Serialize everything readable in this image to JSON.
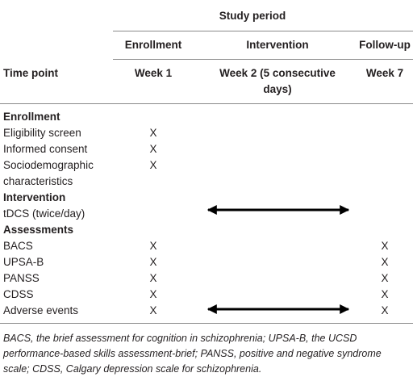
{
  "header": {
    "group_title": "Study period",
    "columns": [
      "Enrollment",
      "Intervention",
      "Follow-up"
    ],
    "row_header": "Time point",
    "time_points": [
      "Week 1",
      "Week 2 (5 consecutive days)",
      "Week 7"
    ]
  },
  "sections": [
    {
      "title": "Enrollment",
      "rows": [
        {
          "label": "Eligibility screen",
          "cells": [
            "X",
            null,
            null
          ]
        },
        {
          "label": "Informed consent",
          "cells": [
            "X",
            null,
            null
          ]
        },
        {
          "label": "Sociodemographic characteristics",
          "cells": [
            "X",
            null,
            null
          ]
        }
      ]
    },
    {
      "title": "Intervention",
      "rows": [
        {
          "label": "tDCS (twice/day)",
          "cells": [
            null,
            null,
            null
          ]
        }
      ]
    },
    {
      "title": "Assessments",
      "rows": [
        {
          "label": "BACS",
          "cells": [
            "X",
            null,
            "X"
          ]
        },
        {
          "label": "UPSA-B",
          "cells": [
            "X",
            null,
            "X"
          ]
        },
        {
          "label": "PANSS",
          "cells": [
            "X",
            null,
            "X"
          ]
        },
        {
          "label": "CDSS",
          "cells": [
            "X",
            null,
            "X"
          ]
        },
        {
          "label": "Adverse events",
          "cells": [
            "X",
            null,
            "X"
          ]
        }
      ]
    }
  ],
  "footnote": [
    "BACS, the brief assessment for cognition in schizophrenia; UPSA-B, the UCSD",
    "performance-based skills assessment-brief; PANSS, positive and negative syndrome",
    "scale; CDSS, Calgary depression scale for schizophrenia."
  ]
}
